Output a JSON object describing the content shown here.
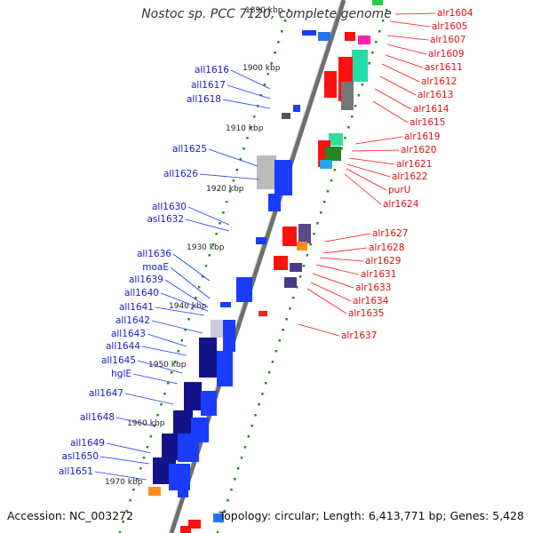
{
  "title": "Nostoc sp. PCC 7120, complete genome",
  "footer": {
    "accession": "Accession: NC_003272",
    "topology": "Topology: circular; Length: 6,413,771 bp; Genes: 5,428"
  },
  "colors": {
    "left_labels": "#1a1acc",
    "right_labels": "#dd1111",
    "left_arrows": "#1a3cff",
    "right_arrows": "#ff1010",
    "ticks": "#1f8a1f",
    "backbone": "#6e6e6e"
  },
  "scale": {
    "unit": "kbp",
    "ticks": [
      "1890 kbp",
      "1900 kbp",
      "1910 kbp",
      "1920 kbp",
      "1930 kbp",
      "1940 kbp",
      "1950 kbp",
      "1960 kbp",
      "1970 kbp"
    ]
  },
  "left_genes": [
    "all1616",
    "all1617",
    "all1618",
    "all1625",
    "all1626",
    "all1630",
    "asl1632",
    "all1636",
    "moaE",
    "all1639",
    "all1640",
    "all1641",
    "all1642",
    "all1643",
    "all1644",
    "all1645",
    "hglE",
    "all1647",
    "all1648",
    "all1649",
    "asl1650",
    "all1651"
  ],
  "right_genes": [
    "alr1604",
    "alr1605",
    "alr1607",
    "alr1609",
    "asr1611",
    "alr1612",
    "alr1613",
    "alr1614",
    "alr1615",
    "alr1619",
    "alr1620",
    "alr1621",
    "alr1622",
    "purU",
    "alr1624",
    "alr1627",
    "alr1628",
    "alr1629",
    "alr1631",
    "alr1633",
    "alr1634",
    "alr1635",
    "alr1637"
  ]
}
